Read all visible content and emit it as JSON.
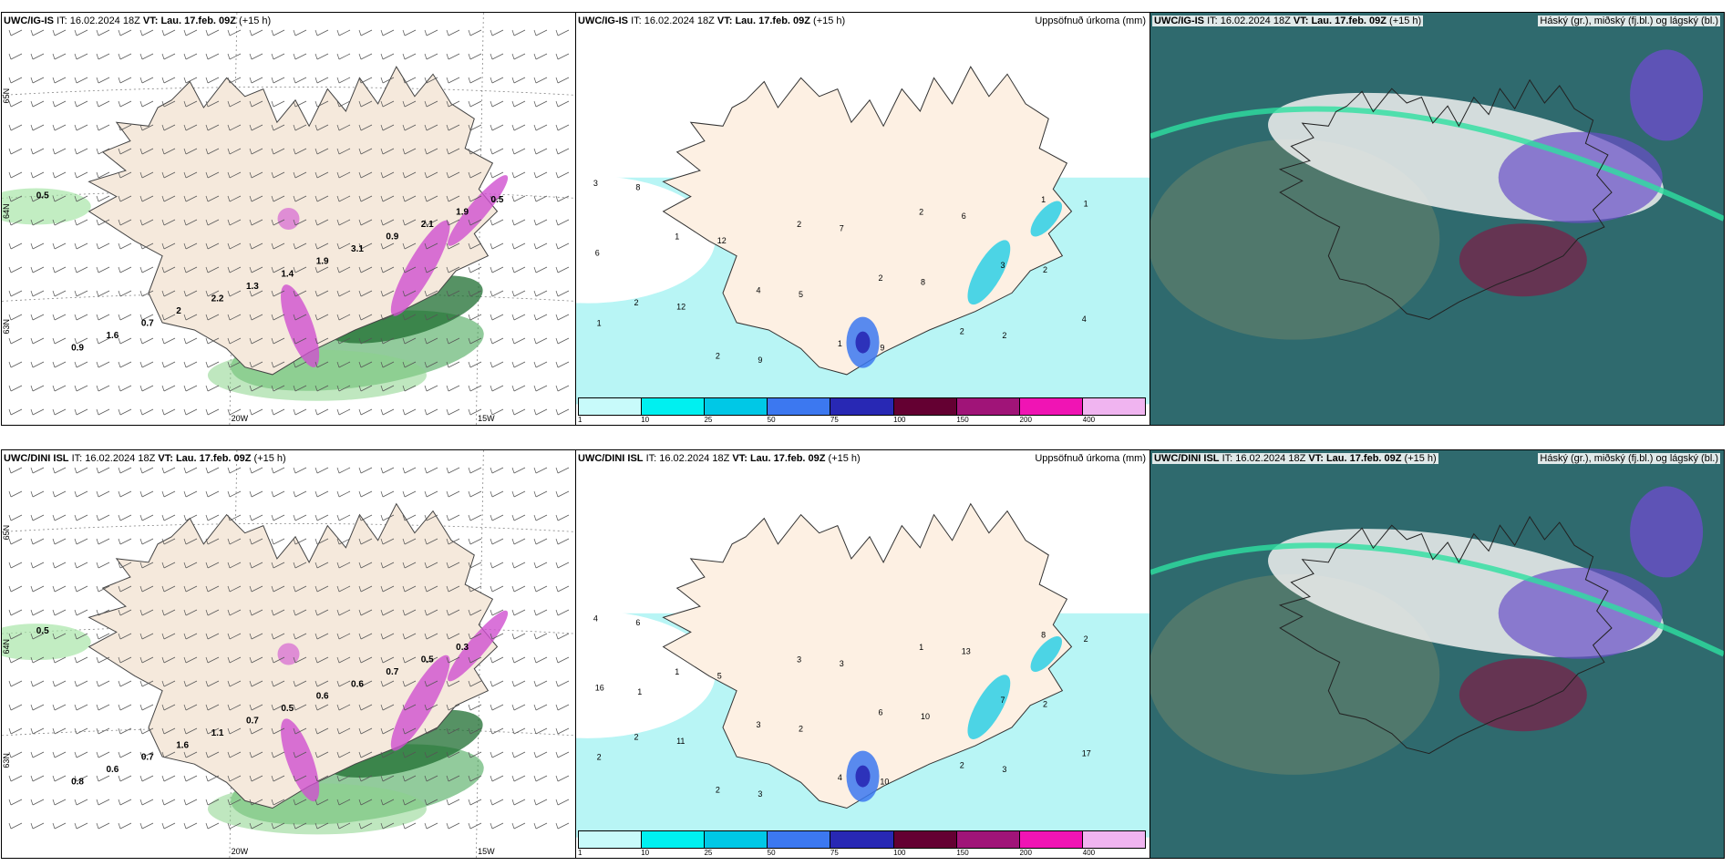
{
  "rows": [
    {
      "model": "UWC/IG-IS",
      "it_label": "IT:",
      "it_value": "16.02.2024 18Z",
      "vt_label": "VT:",
      "vt_value": "Lau. 17.feb. 09Z",
      "lead": "(+15 h)",
      "wind_values": [
        "0.5",
        "0.9",
        "1.6",
        "0.7",
        "2",
        "2.2",
        "1.3",
        "1.4",
        "1.9",
        "3.1",
        "0.9",
        "2.1",
        "1.9",
        "0.5"
      ],
      "precip_values": [
        "3",
        "2",
        "1",
        "2",
        "4",
        "2",
        "1",
        "2",
        "2",
        "2",
        "3",
        "1",
        "4",
        "6",
        "8",
        "12",
        "12",
        "9",
        "5",
        "7",
        "9",
        "8",
        "6",
        "2",
        "2",
        "1",
        "1"
      ]
    },
    {
      "model": "UWC/DINI ISL",
      "it_label": "IT:",
      "it_value": "16.02.2024 18Z",
      "vt_label": "VT:",
      "vt_value": "Lau. 17.feb. 09Z",
      "lead": "(+15 h)",
      "wind_values": [
        "0.5",
        "0.8",
        "0.6",
        "0.7",
        "1.6",
        "1.1",
        "0.7",
        "0.5",
        "0.6",
        "0.6",
        "0.7",
        "0.5",
        "0.3"
      ],
      "precip_values": [
        "4",
        "2",
        "1",
        "2",
        "3",
        "3",
        "4",
        "6",
        "1",
        "2",
        "7",
        "8",
        "17",
        "16",
        "6",
        "11",
        "5",
        "3",
        "2",
        "3",
        "10",
        "10",
        "13",
        "3",
        "2",
        "2",
        "2",
        "1"
      ]
    }
  ],
  "lat_labels": [
    "65N",
    "64N",
    "63N"
  ],
  "lon_labels": [
    "20W",
    "15W"
  ],
  "precip_title": "Uppsöfnuð úrkoma (mm)",
  "cloud_title": "Háský (gr.), miðský (fj.bl.) og lágský (bl.)",
  "colorbar": {
    "ticks": [
      "1",
      "10",
      "25",
      "50",
      "75",
      "100",
      "150",
      "200",
      "400"
    ],
    "colors": [
      "#c8fafa",
      "#00f0f0",
      "#00c8e6",
      "#3c78f0",
      "#2828b4",
      "#640032",
      "#a01478",
      "#f014b4",
      "#f0b4f0"
    ]
  },
  "colors": {
    "land": "#f5e9dc",
    "land_precip": "#fdf0e3",
    "sea": "#ffffff",
    "light_precip": "#b8f5f5",
    "snow": "#d050d0",
    "rain_green": "#1e7a3c",
    "cloud_low": "#2f6a6e",
    "cloud_mid": "#6a4ec8",
    "cloud_high": "#f0f0f0"
  }
}
